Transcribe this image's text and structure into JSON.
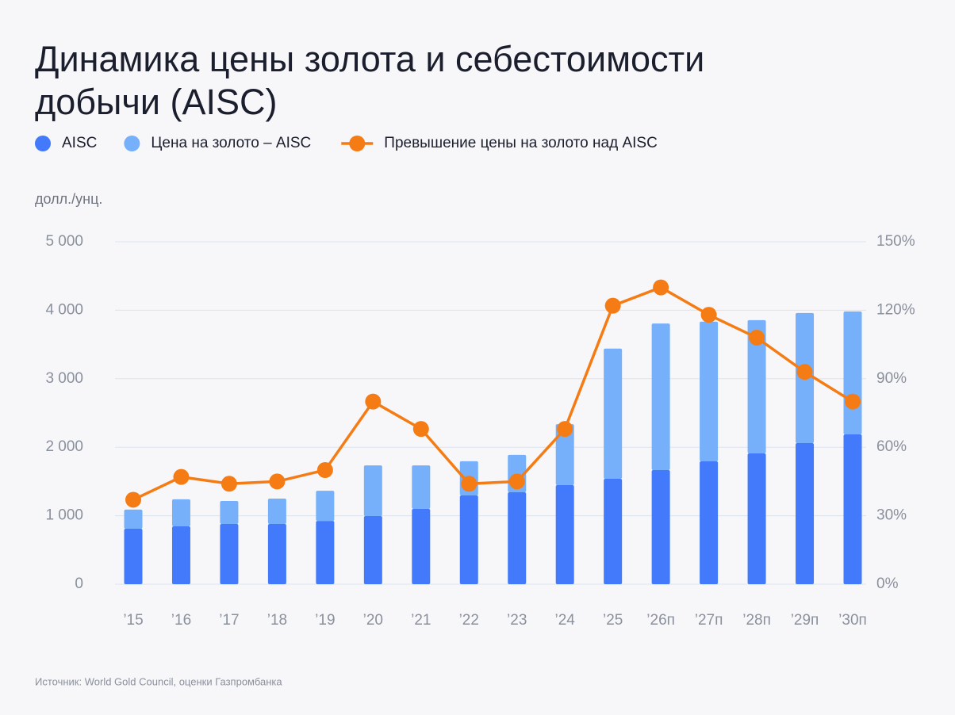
{
  "chart_data": {
    "type": "bar",
    "stacked": true,
    "title": "Динамика цены золота и себестоимости добычи (AISC)",
    "y_label": "долл./унц.",
    "source": "Источник: World Gold Council, оценки Газпромбанка",
    "categories": [
      "’15",
      "’16",
      "’17",
      "’18",
      "’19",
      "’20",
      "’21",
      "’22",
      "’23",
      "’24",
      "’25",
      "’26п",
      "’27п",
      "’28п",
      "’29п",
      "’30п"
    ],
    "series": [
      {
        "name": "AISC",
        "type": "bar",
        "color": "#4379fb",
        "values": [
          810,
          845,
          880,
          880,
          925,
          995,
          1100,
          1296,
          1343,
          1447,
          1540,
          1667,
          1794,
          1910,
          2060,
          2188
        ]
      },
      {
        "name": "Цена на золото – AISC",
        "type": "bar",
        "color": "#76b0fa",
        "values": [
          280,
          395,
          335,
          370,
          440,
          740,
          635,
          500,
          545,
          890,
          1900,
          2140,
          2040,
          1945,
          1900,
          1795
        ]
      },
      {
        "name": "Превышение цены на золото над AISC",
        "type": "line",
        "axis": "y2",
        "color": "#f57c14",
        "values": [
          37,
          47,
          44,
          45,
          50,
          80,
          68,
          44,
          45,
          68,
          122,
          130,
          118,
          108,
          93,
          80
        ]
      }
    ],
    "ylim": [
      0,
      5000
    ],
    "yticks": [
      0,
      {
        "value": 1000,
        "label": "1 000"
      },
      {
        "value": 2000,
        "label": "2 000"
      },
      {
        "value": 3000,
        "label": "3 000"
      },
      {
        "value": 4000,
        "label": "4 000"
      },
      {
        "value": 5000,
        "label": "5 000"
      }
    ],
    "y2lim": [
      0,
      150
    ],
    "y2ticks": [
      {
        "value": 0,
        "label": "0%"
      },
      {
        "value": 30,
        "label": "30%"
      },
      {
        "value": 60,
        "label": "60%"
      },
      {
        "value": 90,
        "label": "90%"
      },
      {
        "value": 120,
        "label": "120%"
      },
      {
        "value": 150,
        "label": "150%"
      }
    ],
    "grid": true,
    "legend": "top"
  }
}
